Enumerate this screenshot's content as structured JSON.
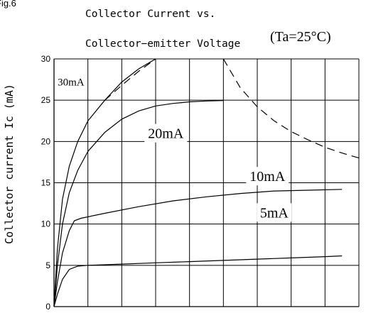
{
  "figure": {
    "label": "Fig.6",
    "title_line1": "Collector Current vs.",
    "title_line2": "Collector−emitter Voltage",
    "condition": "(Ta=25°C)"
  },
  "chart_data": {
    "type": "line",
    "ylabel": "Collector current Ic (mA)",
    "xlabel": "",
    "ylim": [
      0,
      30
    ],
    "y_ticks": [
      0,
      5,
      10,
      15,
      20,
      25,
      30
    ],
    "x_grid_divisions": 9,
    "grid": true,
    "series": [
      {
        "name": "30mA",
        "style": "solid",
        "points": [
          [
            0,
            0
          ],
          [
            0.1,
            7
          ],
          [
            0.25,
            13
          ],
          [
            0.45,
            17
          ],
          [
            0.7,
            20
          ],
          [
            1.0,
            22.5
          ],
          [
            1.5,
            25
          ],
          [
            2.0,
            27.2
          ],
          [
            2.5,
            28.8
          ],
          [
            3.0,
            30
          ]
        ]
      },
      {
        "name": "20mA",
        "style": "solid",
        "points": [
          [
            0,
            0
          ],
          [
            0.1,
            5
          ],
          [
            0.25,
            10
          ],
          [
            0.45,
            13.8
          ],
          [
            0.7,
            16.5
          ],
          [
            1.0,
            18.8
          ],
          [
            1.5,
            21.1
          ],
          [
            2.0,
            22.7
          ],
          [
            2.5,
            23.7
          ],
          [
            3.0,
            24.3
          ],
          [
            3.5,
            24.6
          ],
          [
            4.0,
            24.8
          ],
          [
            4.5,
            24.9
          ],
          [
            5.0,
            24.95
          ]
        ]
      },
      {
        "name": "10mA",
        "style": "solid",
        "points": [
          [
            0,
            0
          ],
          [
            0.1,
            3
          ],
          [
            0.25,
            6.5
          ],
          [
            0.45,
            9.2
          ],
          [
            0.6,
            10.4
          ],
          [
            0.8,
            10.7
          ],
          [
            1.5,
            11.3
          ],
          [
            2.5,
            12.1
          ],
          [
            3.5,
            12.8
          ],
          [
            4.5,
            13.3
          ],
          [
            5.5,
            13.7
          ],
          [
            6.5,
            14.0
          ],
          [
            7.5,
            14.1
          ],
          [
            8.5,
            14.2
          ]
        ]
      },
      {
        "name": "5mA",
        "style": "solid",
        "points": [
          [
            0,
            0
          ],
          [
            0.1,
            1.5
          ],
          [
            0.25,
            3.3
          ],
          [
            0.45,
            4.5
          ],
          [
            0.7,
            4.9
          ],
          [
            1.0,
            5.0
          ],
          [
            2.0,
            5.15
          ],
          [
            3.0,
            5.3
          ],
          [
            4.0,
            5.45
          ],
          [
            5.0,
            5.6
          ],
          [
            6.0,
            5.75
          ],
          [
            7.0,
            5.9
          ],
          [
            8.0,
            6.05
          ],
          [
            8.5,
            6.15
          ]
        ]
      },
      {
        "name": "",
        "style": "dashed",
        "points": [
          [
            1.5,
            25
          ],
          [
            2.0,
            26.8
          ],
          [
            2.5,
            28.5
          ],
          [
            3.0,
            30
          ]
        ]
      },
      {
        "name": "",
        "style": "dashed",
        "points": [
          [
            5.0,
            30
          ],
          [
            5.5,
            26.5
          ],
          [
            6.0,
            24.2
          ],
          [
            6.5,
            22.5
          ],
          [
            7.0,
            21.2
          ],
          [
            7.5,
            20.2
          ],
          [
            8.0,
            19.3
          ],
          [
            8.5,
            18.6
          ],
          [
            9.0,
            18.0
          ]
        ]
      }
    ],
    "annotations": [
      {
        "text": "30mA",
        "x": 0.5,
        "y": 27.2,
        "size": "small"
      },
      {
        "text": "20mA",
        "x": 3.3,
        "y": 21.0,
        "size": "large"
      },
      {
        "text": "10mA",
        "x": 6.3,
        "y": 15.8,
        "size": "large"
      },
      {
        "text": "5mA",
        "x": 6.5,
        "y": 11.4,
        "size": "large"
      }
    ]
  }
}
